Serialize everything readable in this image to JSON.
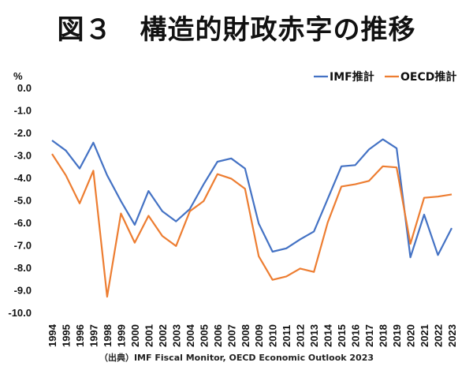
{
  "title": "図３　構造的財政赤字の推移",
  "source": "（出典）IMF Fiscal Monitor, OECD Economic Outlook 2023",
  "chart_data": {
    "type": "line",
    "title": "図３　構造的財政赤字の推移",
    "ylabel": "%",
    "xlabel": "",
    "ylim": [
      -10.0,
      0.0
    ],
    "yticks": [
      "0.0",
      "-1.0",
      "-2.0",
      "-3.0",
      "-4.0",
      "-5.0",
      "-6.0",
      "-7.0",
      "-8.0",
      "-9.0",
      "-10.0"
    ],
    "ytick_values": [
      0,
      -1,
      -2,
      -3,
      -4,
      -5,
      -6,
      -7,
      -8,
      -9,
      -10
    ],
    "grid": false,
    "legend_position": "top-right",
    "x": [
      "1994",
      "1995",
      "1996",
      "1997",
      "1998",
      "1999",
      "2000",
      "2001",
      "2002",
      "2003",
      "2004",
      "2005",
      "2006",
      "2007",
      "2008",
      "2009",
      "2010",
      "2011",
      "2012",
      "2013",
      "2014",
      "2015",
      "2016",
      "2017",
      "2018",
      "2019",
      "2020",
      "2021",
      "2022",
      "2023"
    ],
    "series": [
      {
        "name": "IMF推計",
        "color": "#4472C4",
        "values": [
          -2.35,
          -2.8,
          -3.6,
          -2.45,
          -3.9,
          -5.05,
          -6.1,
          -4.6,
          -5.5,
          -5.95,
          -5.4,
          -4.3,
          -3.3,
          -3.15,
          -3.6,
          -6.05,
          -7.3,
          -7.15,
          -6.75,
          -6.4,
          -4.95,
          -3.5,
          -3.45,
          -2.75,
          -2.3,
          -2.7,
          -7.55,
          -5.65,
          -7.45,
          -6.25
        ]
      },
      {
        "name": "OECD推計",
        "color": "#ED7D31",
        "values": [
          -2.95,
          -3.9,
          -5.15,
          -3.7,
          -9.3,
          -5.6,
          -6.9,
          -5.7,
          -6.6,
          -7.05,
          -5.5,
          -5.05,
          -3.85,
          -4.05,
          -4.5,
          -7.5,
          -8.55,
          -8.4,
          -8.05,
          -8.2,
          -6.0,
          -4.4,
          -4.3,
          -4.15,
          -3.5,
          -3.55,
          -6.95,
          -4.9,
          -4.85,
          -4.75
        ]
      }
    ]
  }
}
